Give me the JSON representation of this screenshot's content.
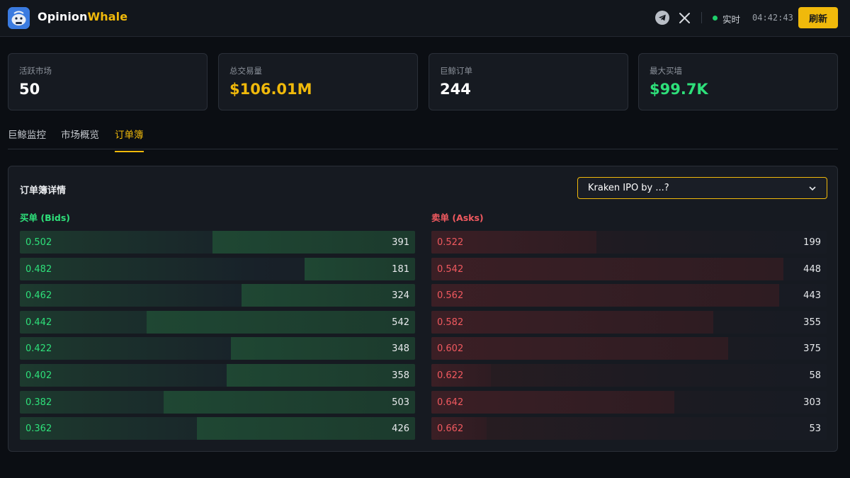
{
  "header": {
    "brand_part1": "Opinion",
    "brand_part2": "Whale",
    "live_label": "实时",
    "clock": "04:42:43",
    "refresh_label": "刷新",
    "icons": [
      "telegram-icon",
      "x-icon"
    ]
  },
  "stats": [
    {
      "label": "活跃市场",
      "value": "50",
      "color": "#ffffff"
    },
    {
      "label": "总交易量",
      "value": "$106.01M",
      "color": "#f0b90b"
    },
    {
      "label": "巨鲸订单",
      "value": "244",
      "color": "#ffffff"
    },
    {
      "label": "最大买墙",
      "value": "$99.7K",
      "color": "#2ee07a"
    }
  ],
  "tabs": [
    {
      "label": "巨鲸监控",
      "active": false
    },
    {
      "label": "市场概览",
      "active": false
    },
    {
      "label": "订单簿",
      "active": true
    }
  ],
  "orderbook": {
    "title": "订单簿详情",
    "market_selected": "Kraken IPO by ...?",
    "bids_label": "买单 (Bids)",
    "asks_label": "卖单 (Asks)",
    "bid_color": "#2ee07a",
    "ask_color": "#f0595f",
    "bids": [
      {
        "price": "0.502",
        "size": "391"
      },
      {
        "price": "0.482",
        "size": "181"
      },
      {
        "price": "0.462",
        "size": "324"
      },
      {
        "price": "0.442",
        "size": "542"
      },
      {
        "price": "0.422",
        "size": "348"
      },
      {
        "price": "0.402",
        "size": "358"
      },
      {
        "price": "0.382",
        "size": "503"
      },
      {
        "price": "0.362",
        "size": "426"
      }
    ],
    "asks": [
      {
        "price": "0.522",
        "size": "199"
      },
      {
        "price": "0.542",
        "size": "448"
      },
      {
        "price": "0.562",
        "size": "443"
      },
      {
        "price": "0.582",
        "size": "355"
      },
      {
        "price": "0.602",
        "size": "375"
      },
      {
        "price": "0.622",
        "size": "58"
      },
      {
        "price": "0.642",
        "size": "303"
      },
      {
        "price": "0.662",
        "size": "53"
      }
    ]
  }
}
